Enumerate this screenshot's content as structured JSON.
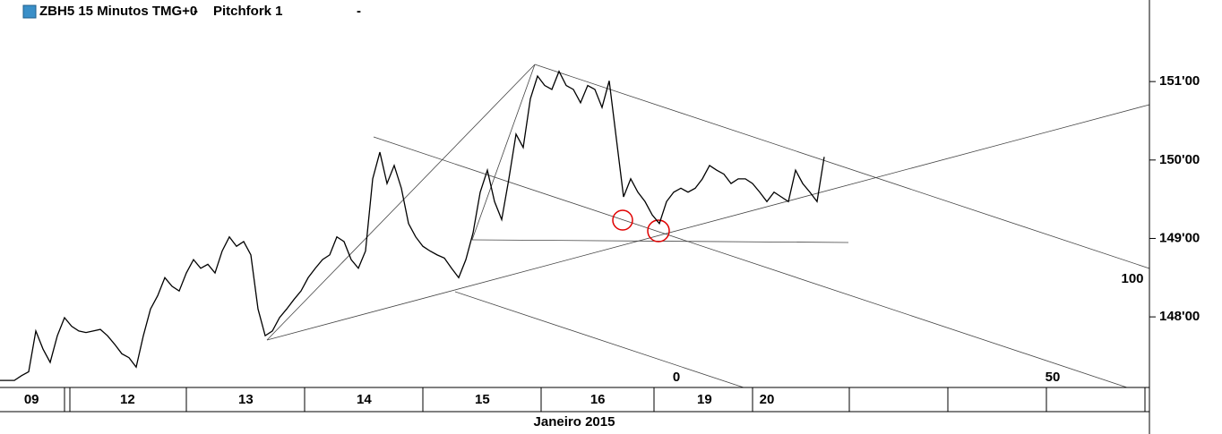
{
  "chart_data": {
    "type": "line",
    "title": "ZBH5 15 Minutos TMG+0",
    "study": "Pitchfork 1",
    "x_label": "Janeiro 2015",
    "series": [
      {
        "name": "ZBH5",
        "color": "#000000",
        "values": [
          147.19,
          147.19,
          147.19,
          147.25,
          147.3,
          147.82,
          147.59,
          147.42,
          147.76,
          147.99,
          147.88,
          147.82,
          147.8,
          147.82,
          147.84,
          147.76,
          147.65,
          147.53,
          147.48,
          147.36,
          147.76,
          148.1,
          148.27,
          148.5,
          148.39,
          148.33,
          148.56,
          148.73,
          148.62,
          148.67,
          148.56,
          148.84,
          149.02,
          148.9,
          148.96,
          148.79,
          148.1,
          147.76,
          147.82,
          147.99,
          148.1,
          148.22,
          148.33,
          148.5,
          148.62,
          148.73,
          148.79,
          149.02,
          148.96,
          148.73,
          148.62,
          148.84,
          149.76,
          150.1,
          149.7,
          149.93,
          149.64,
          149.19,
          149.02,
          148.9,
          148.84,
          148.79,
          148.75,
          148.62,
          148.5,
          148.73,
          149.07,
          149.59,
          149.87,
          149.47,
          149.24,
          149.76,
          150.33,
          150.16,
          150.78,
          151.07,
          150.95,
          150.9,
          151.13,
          150.95,
          150.9,
          150.73,
          150.95,
          150.9,
          150.67,
          151.01,
          150.27,
          149.53,
          149.76,
          149.59,
          149.47,
          149.3,
          149.19,
          149.47,
          149.59,
          149.64,
          149.59,
          149.64,
          149.76,
          149.93,
          149.87,
          149.82,
          149.7,
          149.76,
          149.76,
          149.7,
          149.59,
          149.47,
          149.59,
          149.53,
          149.47,
          149.87,
          149.7,
          149.59,
          149.47,
          150.04
        ]
      }
    ],
    "xlim": [
      0,
      160
    ],
    "xticks": [
      {
        "value": 4.4,
        "label": "09"
      },
      {
        "value": 17.8,
        "label": "12"
      },
      {
        "value": 34.3,
        "label": "13"
      },
      {
        "value": 50.8,
        "label": "14"
      },
      {
        "value": 67.3,
        "label": "15"
      },
      {
        "value": 83.4,
        "label": "16"
      },
      {
        "value": 98.3,
        "label": "19"
      },
      {
        "value": 107,
        "label": "20"
      }
    ],
    "ylim": [
      147.1,
      152.04
    ],
    "yticks": [
      {
        "value": 148,
        "label": "148'00"
      },
      {
        "value": 149,
        "label": "149'00"
      },
      {
        "value": 150,
        "label": "150'00"
      },
      {
        "value": 151,
        "label": "151'00"
      }
    ],
    "pitchfork_levels": [
      0,
      50,
      100
    ]
  }
}
